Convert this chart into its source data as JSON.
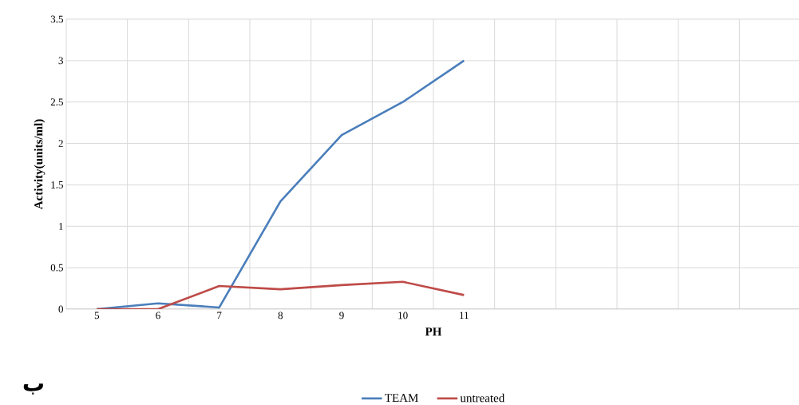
{
  "chart_data": {
    "type": "line",
    "xlabel": "PH",
    "ylabel": "Activity(units/ml)",
    "categories": [
      "5",
      "6",
      "7",
      "8",
      "9",
      "10",
      "11",
      null,
      null,
      null,
      null,
      null
    ],
    "series": [
      {
        "name": "TEAM",
        "color": "#4a7ebb",
        "values": [
          0,
          0.07,
          0.02,
          1.3,
          2.1,
          2.5,
          3.0,
          null,
          null,
          null,
          null,
          null
        ]
      },
      {
        "name": "untreated",
        "color": "#be4b48",
        "values": [
          0,
          0,
          0.28,
          0.24,
          0.29,
          0.33,
          0.17,
          null,
          null,
          null,
          null,
          null
        ]
      }
    ],
    "ylim": [
      0,
      3.5
    ],
    "yticks": [
      0,
      0.5,
      1,
      1.5,
      2,
      2.5,
      3,
      3.5
    ],
    "grid": true,
    "legend": "bottom",
    "marker": "none",
    "line_style": "solid",
    "annotations": [
      "ب"
    ]
  }
}
